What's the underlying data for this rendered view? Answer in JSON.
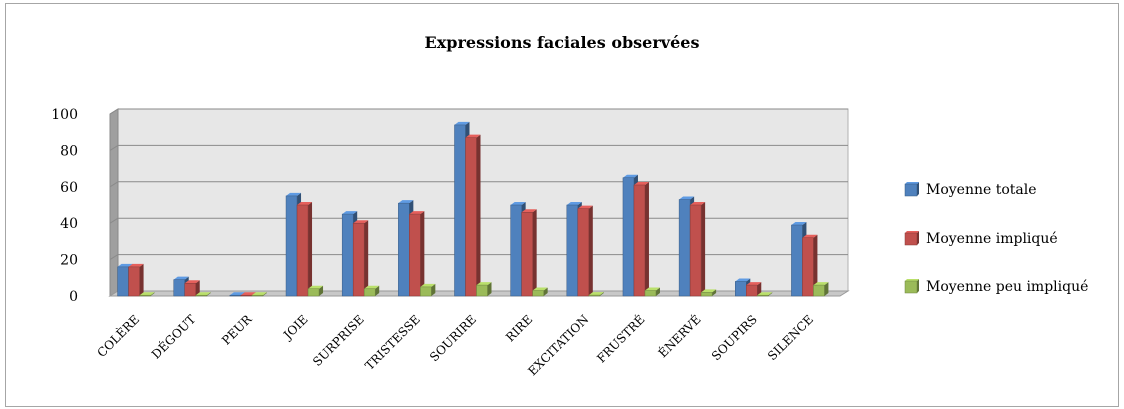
{
  "chart_data": {
    "type": "bar",
    "title": "Expressions faciales observées",
    "categories": [
      "COLÈRE",
      "DÉGOUT",
      "PEUR",
      "JOIE",
      "SURPRISE",
      "TRISTESSE",
      "SOURIRE",
      "RIRE",
      "EXCITATION",
      "FRUSTRÉ",
      "ÉNERVÉ",
      "SOUPIRS",
      "SILENCE"
    ],
    "series": [
      {
        "name": "Moyenne totale",
        "color": "#4f81bd",
        "values": [
          16,
          9,
          0,
          55,
          45,
          51,
          94,
          50,
          50,
          65,
          53,
          8,
          39
        ]
      },
      {
        "name": "Moyenne impliqué",
        "color": "#c0504d",
        "values": [
          16,
          7,
          0,
          50,
          40,
          45,
          87,
          46,
          48,
          61,
          50,
          6,
          32
        ]
      },
      {
        "name": "Moyenne peu impliqué",
        "color": "#9bbb59",
        "values": [
          0,
          0,
          0,
          4,
          4,
          5,
          6,
          3,
          0.5,
          3,
          2,
          0,
          6
        ]
      }
    ],
    "yticks": [
      0,
      20,
      40,
      60,
      80,
      100
    ],
    "ylim": [
      0,
      100
    ],
    "grid": true,
    "legend": "right"
  }
}
